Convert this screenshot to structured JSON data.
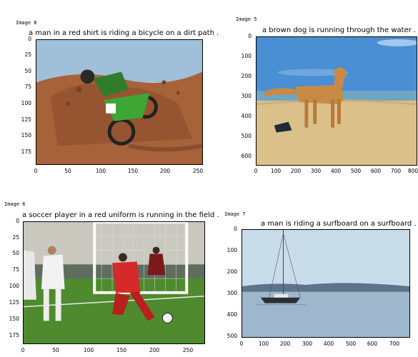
{
  "panels": [
    {
      "id": "p1",
      "image_label": "Image  8",
      "caption": "a man in a red shirt is riding a bicycle on a dirt path .",
      "image_subject": "motocross rider on a green dirt bike kicking up dirt",
      "y_ticks": [
        "0",
        "25",
        "50",
        "75",
        "100",
        "125",
        "150",
        "175"
      ],
      "x_ticks": [
        "0",
        "50",
        "100",
        "150",
        "200",
        "250"
      ],
      "colors": {
        "sky": "#9fc0d8",
        "dirt": "#a8623a",
        "bike": "#3fa535"
      }
    },
    {
      "id": "p2",
      "image_label": "Image  5",
      "caption": "a brown dog is running through the water .",
      "image_subject": "golden retriever standing on a sandy beach by the sea",
      "y_ticks": [
        "0",
        "100",
        "200",
        "300",
        "400",
        "500",
        "600"
      ],
      "x_ticks": [
        "0",
        "100",
        "200",
        "300",
        "400",
        "500",
        "600",
        "700",
        "800"
      ],
      "colors": {
        "sky": "#4a8fd4",
        "sea": "#6fa6c4",
        "sand": "#dcc08a",
        "dog": "#c98a45"
      }
    },
    {
      "id": "p3",
      "image_label": "Image  6",
      "caption": "a soccer player in a red uniform is running in the field .",
      "image_subject": "soccer players in front of a goal net, one in a red number 10 uniform",
      "y_ticks": [
        "0",
        "25",
        "50",
        "75",
        "100",
        "125",
        "150",
        "175"
      ],
      "x_ticks": [
        "0",
        "50",
        "100",
        "150",
        "200",
        "250"
      ],
      "colors": {
        "grass": "#4f8a2e",
        "red_kit": "#d42a2a",
        "white_kit": "#f2f2f2"
      }
    },
    {
      "id": "p4",
      "image_label": "Image  7",
      "caption": "a man is riding a surfboard on a surfboard .",
      "image_subject": "sailboat on calm water in front of a distant shoreline",
      "y_ticks": [
        "0",
        "100",
        "200",
        "300",
        "400",
        "500"
      ],
      "x_ticks": [
        "0",
        "100",
        "200",
        "300",
        "400",
        "500",
        "600",
        "700"
      ],
      "colors": {
        "sky": "#c9dcea",
        "water": "#9fb7cc",
        "hills": "#5d7388"
      }
    }
  ]
}
